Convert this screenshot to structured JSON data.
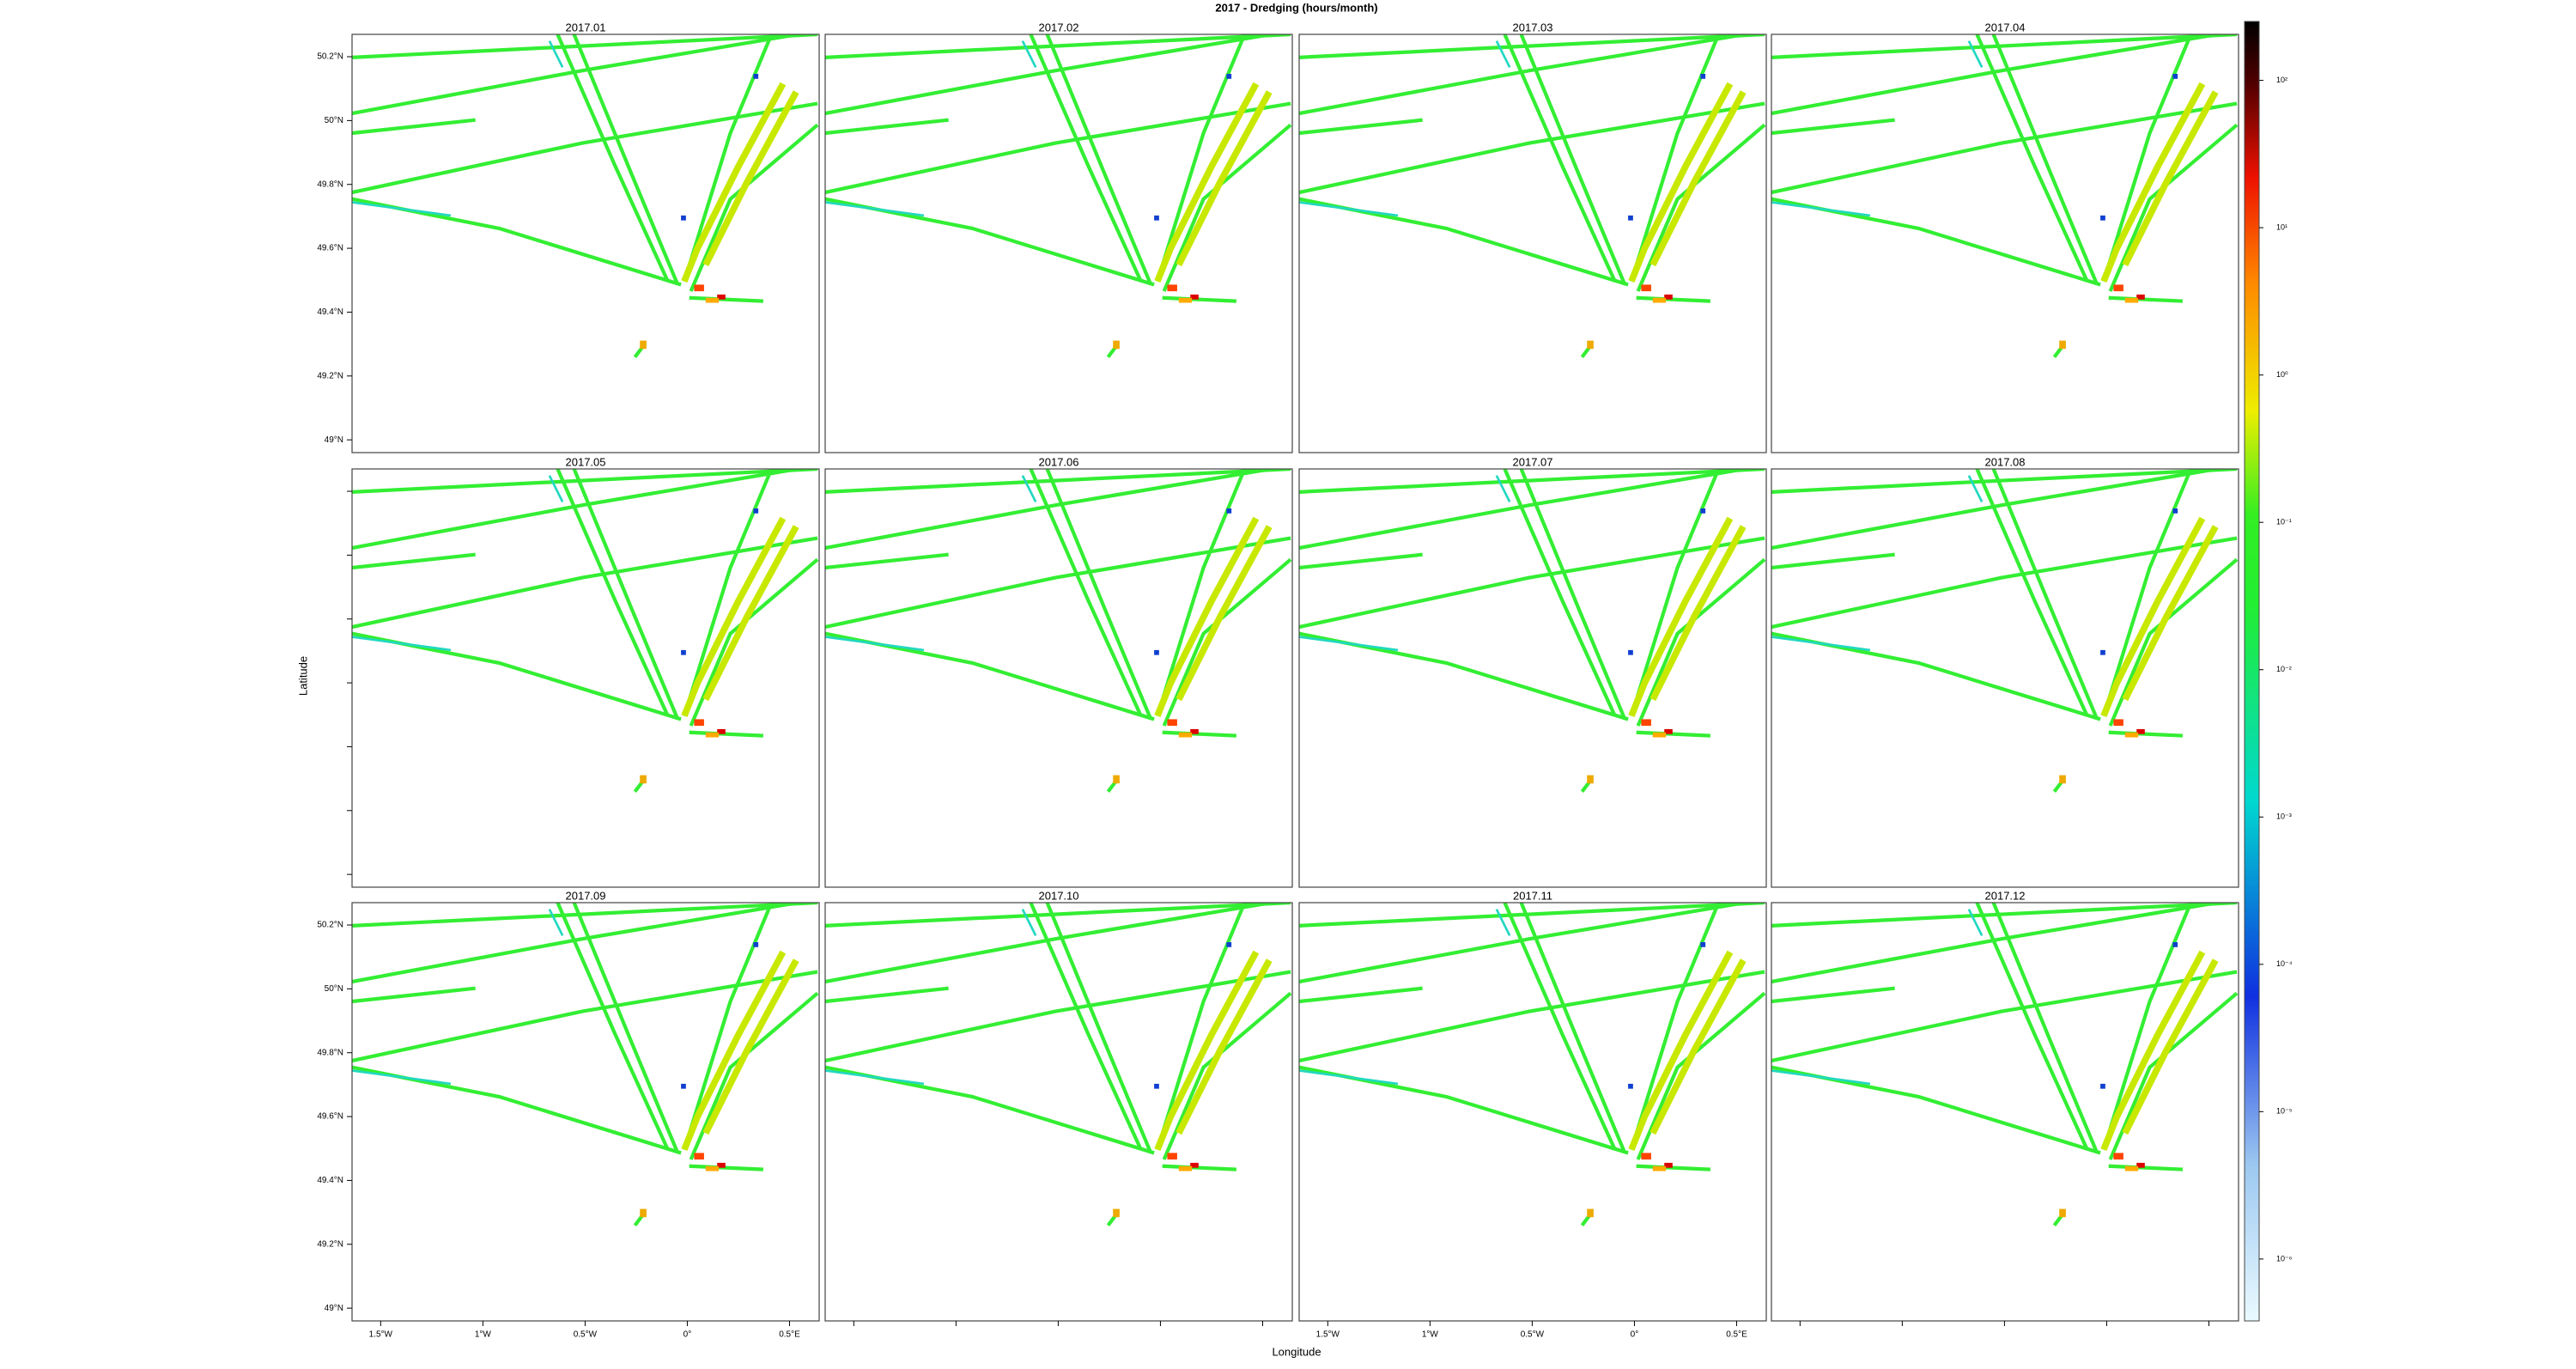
{
  "chart_data": {
    "type": "map-facets",
    "title": "2017 - Dredging (hours/month)",
    "x_label": "Longitude",
    "y_label": "Latitude",
    "panels": [
      "2017.01",
      "2017.02",
      "2017.03",
      "2017.04",
      "2017.05",
      "2017.06",
      "2017.07",
      "2017.08",
      "2017.09",
      "2017.10",
      "2017.11",
      "2017.12"
    ],
    "xlim": [
      -1.64,
      0.645
    ],
    "xticks": [
      {
        "value": -1.5,
        "label": "1.5°W"
      },
      {
        "value": -1,
        "label": "1°W"
      },
      {
        "value": -0.5,
        "label": "0.5°W"
      },
      {
        "value": 0,
        "label": "0°"
      },
      {
        "value": 0.5,
        "label": "0.5°E"
      }
    ],
    "ylim": [
      48.96,
      50.27
    ],
    "yticks": [
      {
        "value": 49,
        "label": "49°N"
      },
      {
        "value": 49.2,
        "label": "49.2°N"
      },
      {
        "value": 49.4,
        "label": "49.4°N"
      },
      {
        "value": 49.6,
        "label": "49.6°N"
      },
      {
        "value": 49.8,
        "label": "49.8°N"
      },
      {
        "value": 50,
        "label": "50°N"
      },
      {
        "value": 50.2,
        "label": "50.2°N"
      }
    ],
    "colorbar": {
      "log": true,
      "clim": [
        3.8e-07,
        251
      ],
      "ticks": [
        {
          "value": 100,
          "label": "10²"
        },
        {
          "value": 10,
          "label": "10¹"
        },
        {
          "value": 1,
          "label": "10⁰"
        },
        {
          "value": 0.1,
          "label": "10⁻¹"
        },
        {
          "value": 0.01,
          "label": "10⁻²"
        },
        {
          "value": 0.001,
          "label": "10⁻³"
        },
        {
          "value": 0.0001,
          "label": "10⁻⁴"
        },
        {
          "value": 1e-05,
          "label": "10⁻⁵"
        },
        {
          "value": 1e-06,
          "label": "10⁻⁶"
        }
      ]
    }
  }
}
